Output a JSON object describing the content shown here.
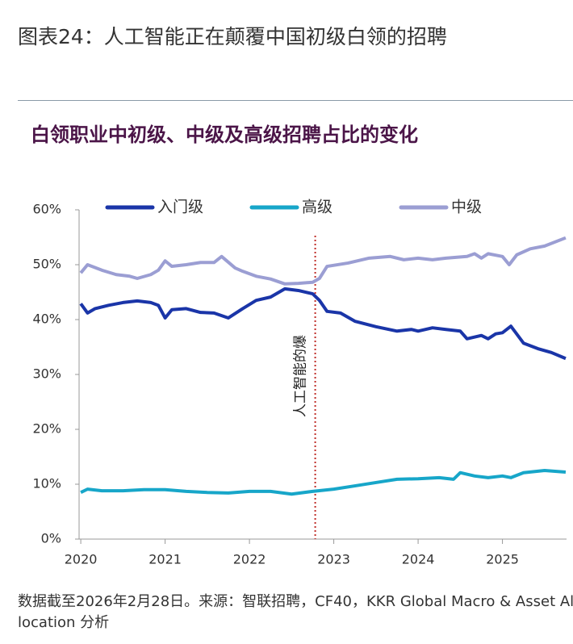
{
  "header": {
    "title": "图表24：人工智能正在颠覆中国初级白领的招聘"
  },
  "chart_data": {
    "type": "line",
    "title": "白领职业中初级、中级及高级招聘占比的变化",
    "xlim": [
      2019.98,
      2025.76
    ],
    "xticks": [
      2020,
      2021,
      2022,
      2023,
      2024,
      2025
    ],
    "ylim": [
      0,
      60
    ],
    "yticks": [
      {
        "value": 0,
        "label": "0%"
      },
      {
        "value": 10,
        "label": "10%"
      },
      {
        "value": 20,
        "label": "20%"
      },
      {
        "value": 30,
        "label": "30%"
      },
      {
        "value": 40,
        "label": "40%"
      },
      {
        "value": 50,
        "label": "50%"
      },
      {
        "value": 60,
        "label": "60%"
      }
    ],
    "grid": false,
    "series": [
      {
        "name": "入门级",
        "color": "#1a35a8",
        "x": [
          2020.0,
          2020.08,
          2020.17,
          2020.33,
          2020.5,
          2020.67,
          2020.83,
          2020.92,
          2021.0,
          2021.08,
          2021.25,
          2021.42,
          2021.58,
          2021.75,
          2021.92,
          2022.08,
          2022.25,
          2022.42,
          2022.58,
          2022.75,
          2022.83,
          2022.92,
          2023.08,
          2023.25,
          2023.5,
          2023.75,
          2023.92,
          2024.0,
          2024.17,
          2024.33,
          2024.5,
          2024.58,
          2024.75,
          2024.83,
          2024.92,
          2025.0,
          2025.1,
          2025.25,
          2025.42,
          2025.58,
          2025.75
        ],
        "values": [
          42.9,
          41.2,
          42.0,
          42.6,
          43.1,
          43.4,
          43.1,
          42.6,
          40.3,
          41.8,
          42.0,
          41.3,
          41.2,
          40.3,
          42.0,
          43.5,
          44.1,
          45.6,
          45.3,
          44.7,
          43.5,
          41.5,
          41.2,
          39.7,
          38.7,
          37.9,
          38.2,
          37.9,
          38.5,
          38.2,
          37.9,
          36.5,
          37.1,
          36.5,
          37.4,
          37.6,
          38.8,
          35.7,
          34.7,
          34.0,
          32.9
        ]
      },
      {
        "name": "高级",
        "color": "#17a6c9",
        "x": [
          2020.0,
          2020.08,
          2020.25,
          2020.5,
          2020.75,
          2021.0,
          2021.25,
          2021.5,
          2021.75,
          2022.0,
          2022.25,
          2022.5,
          2022.75,
          2023.0,
          2023.25,
          2023.5,
          2023.75,
          2024.0,
          2024.25,
          2024.42,
          2024.5,
          2024.67,
          2024.83,
          2025.0,
          2025.1,
          2025.25,
          2025.5,
          2025.75
        ],
        "values": [
          8.5,
          9.1,
          8.8,
          8.8,
          9.0,
          9.0,
          8.7,
          8.5,
          8.4,
          8.7,
          8.7,
          8.2,
          8.7,
          9.1,
          9.7,
          10.3,
          10.9,
          11.0,
          11.2,
          10.9,
          12.1,
          11.5,
          11.2,
          11.5,
          11.2,
          12.1,
          12.5,
          12.2
        ]
      },
      {
        "name": "中级",
        "color": "#9b9ed3",
        "x": [
          2020.0,
          2020.08,
          2020.25,
          2020.42,
          2020.58,
          2020.67,
          2020.83,
          2020.92,
          2021.0,
          2021.08,
          2021.25,
          2021.42,
          2021.58,
          2021.67,
          2021.83,
          2021.92,
          2022.08,
          2022.25,
          2022.42,
          2022.58,
          2022.75,
          2022.83,
          2022.92,
          2023.17,
          2023.42,
          2023.67,
          2023.83,
          2024.0,
          2024.17,
          2024.33,
          2024.58,
          2024.67,
          2024.75,
          2024.83,
          2025.0,
          2025.08,
          2025.17,
          2025.33,
          2025.5,
          2025.75
        ],
        "values": [
          48.5,
          50.0,
          49.0,
          48.2,
          47.9,
          47.5,
          48.2,
          49.0,
          50.7,
          49.7,
          50.0,
          50.4,
          50.4,
          51.5,
          49.4,
          48.8,
          47.9,
          47.4,
          46.5,
          46.6,
          46.8,
          47.5,
          49.7,
          50.3,
          51.2,
          51.5,
          50.9,
          51.2,
          50.9,
          51.2,
          51.5,
          52.0,
          51.2,
          52.0,
          51.5,
          50.0,
          51.8,
          52.9,
          53.4,
          54.9
        ]
      }
    ],
    "annotation": {
      "text": "人工智能的爆",
      "x": 2022.78,
      "color": "#c0302b"
    }
  },
  "footer": {
    "note": "数据截至2026年2月28日。来源：智联招聘，CF40，KKR Global Macro & Asset Allocation 分析"
  }
}
